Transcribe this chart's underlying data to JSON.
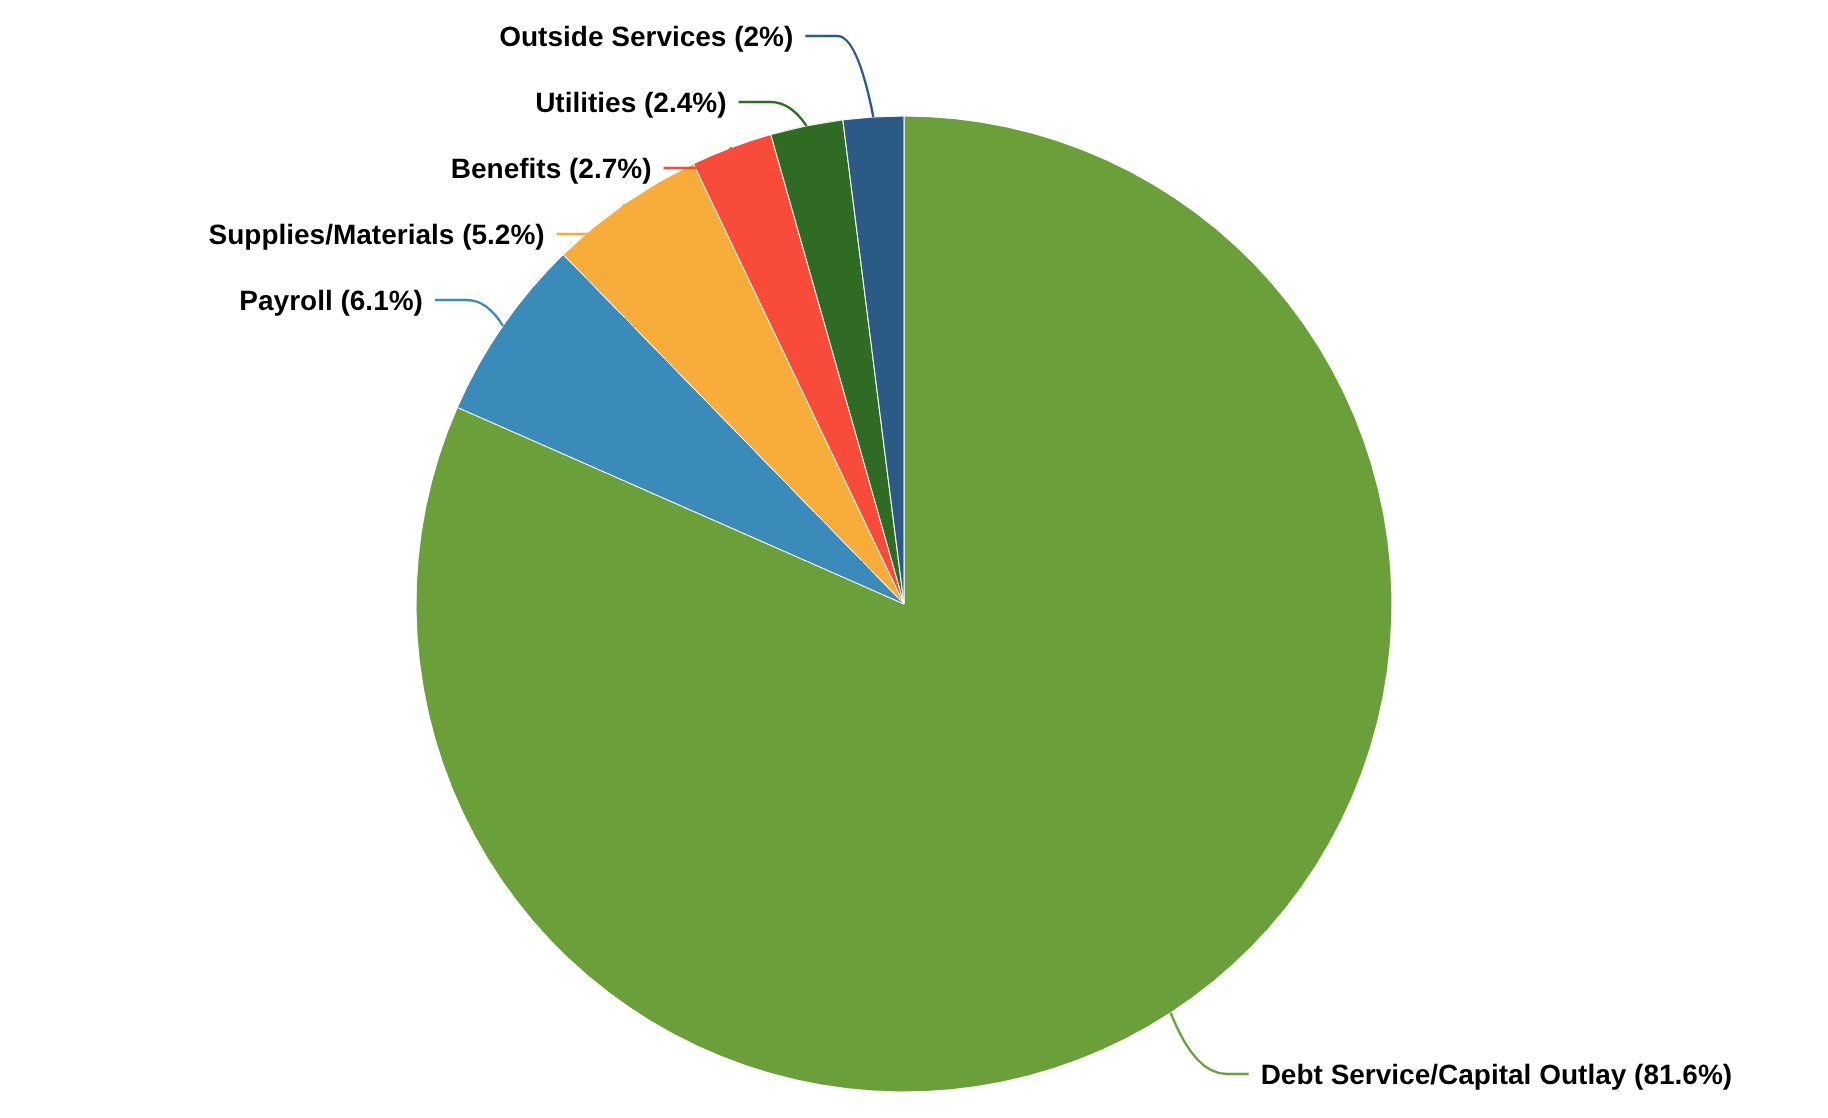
{
  "chart_data": {
    "type": "pie",
    "categories": [
      "Debt Service/Capital Outlay",
      "Payroll",
      "Supplies/Materials",
      "Benefits",
      "Utilities",
      "Outside Services"
    ],
    "values": [
      81.6,
      6.1,
      5.2,
      2.7,
      2.4,
      2
    ],
    "value_labels": [
      "(81.6%)",
      "(6.1%)",
      "(5.2%)",
      "(2.7%)",
      "(2.4%)",
      "(2%)"
    ],
    "colors": [
      "#6a9f3a",
      "#3b8bba",
      "#f8ac3a",
      "#f84b3a",
      "#2f6b22",
      "#2b5a86"
    ]
  }
}
